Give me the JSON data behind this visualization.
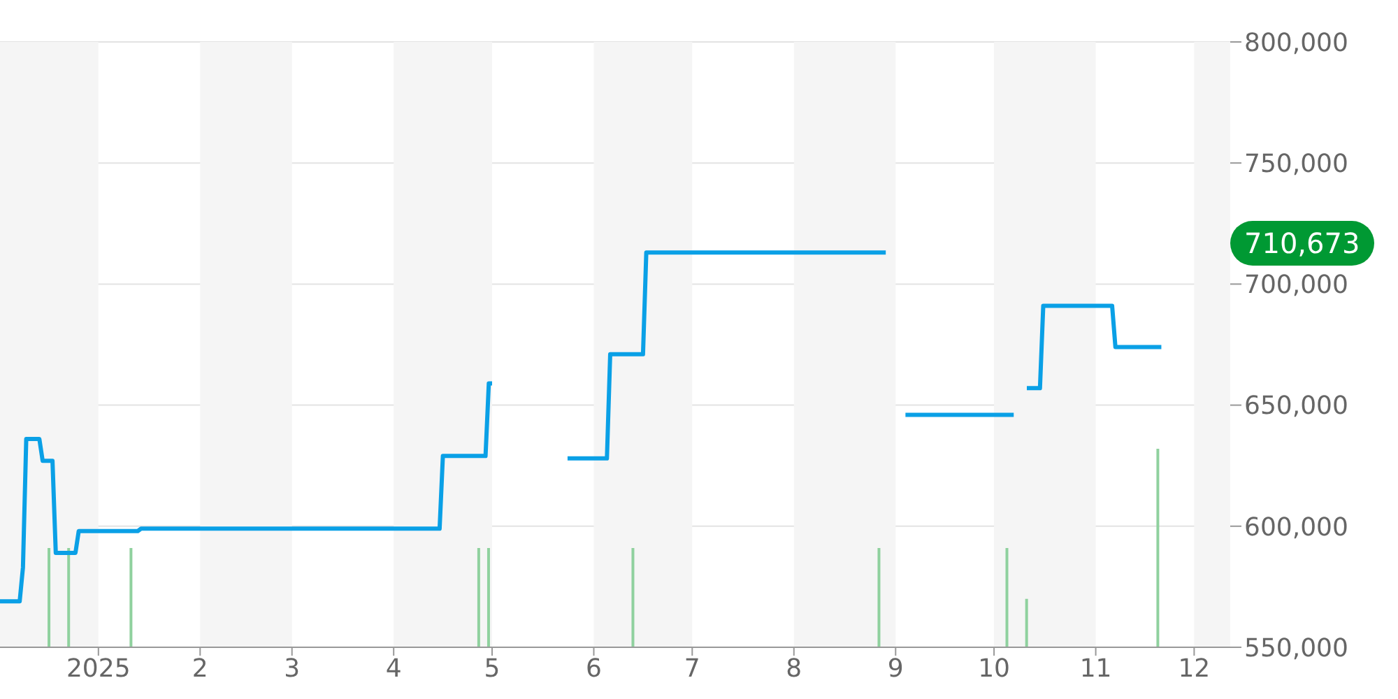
{
  "chart_data": {
    "type": "line",
    "annotations": [
      "710,673"
    ],
    "xlim": [
      "2024-12-02",
      "2025-12-12"
    ],
    "xticks": [
      {
        "value": "2025-01-01",
        "label": "2025"
      },
      {
        "value": "2025-02-01",
        "label": "2"
      },
      {
        "value": "2025-03-01",
        "label": "3"
      },
      {
        "value": "2025-04-01",
        "label": "4"
      },
      {
        "value": "2025-05-01",
        "label": "5"
      },
      {
        "value": "2025-06-01",
        "label": "6"
      },
      {
        "value": "2025-07-01",
        "label": "7"
      },
      {
        "value": "2025-08-01",
        "label": "8"
      },
      {
        "value": "2025-09-01",
        "label": "9"
      },
      {
        "value": "2025-10-01",
        "label": "10"
      },
      {
        "value": "2025-11-01",
        "label": "11"
      },
      {
        "value": "2025-12-01",
        "label": "12"
      }
    ],
    "ylim": [
      550000,
      800000
    ],
    "yticks": [
      {
        "value": 550000,
        "label": "550,000"
      },
      {
        "value": 600000,
        "label": "600,000"
      },
      {
        "value": 650000,
        "label": "650,000"
      },
      {
        "value": 700000,
        "label": "700,000"
      },
      {
        "value": 750000,
        "label": "750,000"
      },
      {
        "value": 800000,
        "label": "800,000"
      }
    ],
    "grid": "y",
    "bands": [
      {
        "axis": "x",
        "from": "2024-12-02",
        "to": "2025-01-01",
        "color": "#f5f5f5"
      },
      {
        "axis": "x",
        "from": "2025-02-01",
        "to": "2025-03-01",
        "color": "#f5f5f5"
      },
      {
        "axis": "x",
        "from": "2025-04-01",
        "to": "2025-05-01",
        "color": "#f5f5f5"
      },
      {
        "axis": "x",
        "from": "2025-06-01",
        "to": "2025-07-01",
        "color": "#f5f5f5"
      },
      {
        "axis": "x",
        "from": "2025-08-01",
        "to": "2025-09-01",
        "color": "#f5f5f5"
      },
      {
        "axis": "x",
        "from": "2025-10-01",
        "to": "2025-11-01",
        "color": "#f5f5f5"
      },
      {
        "axis": "x",
        "from": "2025-12-01",
        "to": "2025-12-12",
        "color": "#f5f5f5"
      }
    ],
    "series": [
      {
        "type": "bar",
        "color": "#8fd19e",
        "x": [
          "2024-12-17",
          "2024-12-23",
          "2025-01-11",
          "2025-04-27",
          "2025-04-30",
          "2025-06-13",
          "2025-08-27",
          "2025-10-05",
          "2025-10-11",
          "2025-11-20"
        ],
        "values": [
          591000,
          591000,
          591000,
          591000,
          591000,
          591000,
          591000,
          591000,
          570000,
          632000
        ]
      },
      {
        "color": "#0aa0e6",
        "x": [
          "2024-12-02",
          "2024-12-08",
          "2024-12-09",
          "2024-12-10",
          "2024-12-14",
          "2024-12-15",
          "2024-12-18",
          "2024-12-19",
          "2024-12-25",
          "2024-12-26",
          "2025-01-13",
          "2025-01-14",
          "2025-04-15",
          "2025-04-16",
          "2025-04-29",
          "2025-04-30",
          "2025-05-01",
          "2025-05-12",
          "2025-05-24",
          "2025-06-05",
          "2025-06-06",
          "2025-06-16",
          "2025-06-17",
          "2025-08-29",
          "2025-09-01",
          "2025-09-04",
          "2025-10-07",
          "2025-10-09",
          "2025-10-11",
          "2025-10-15",
          "2025-10-16",
          "2025-11-06",
          "2025-11-07",
          "2025-11-21"
        ],
        "values": [
          569000,
          569000,
          583000,
          636000,
          636000,
          627000,
          627000,
          589000,
          589000,
          598000,
          598000,
          599000,
          599000,
          629000,
          629000,
          659000,
          659000,
          null,
          628000,
          628000,
          671000,
          671000,
          713000,
          713000,
          null,
          646000,
          646000,
          null,
          657000,
          657000,
          691000,
          691000,
          674000,
          674000
        ]
      }
    ]
  }
}
